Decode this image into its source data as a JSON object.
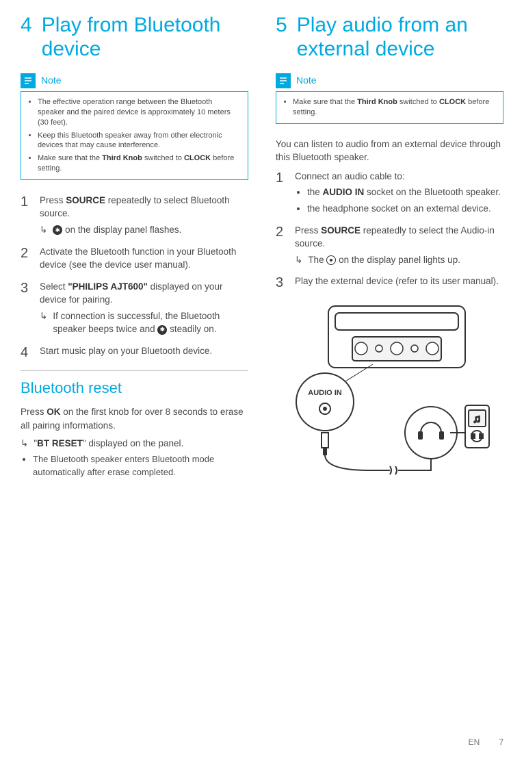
{
  "left": {
    "chapter_num": "4",
    "chapter_title": "Play from Bluetooth device",
    "note_label": "Note",
    "notes": [
      "The effective operation range between the Bluetooth speaker and the paired device is approximately 10 meters (30 feet).",
      "Keep this Bluetooth speaker away from other electronic devices that may cause interference.",
      "Make sure that the <strong>Third Knob</strong> switched to <strong>CLOCK</strong> before setting."
    ],
    "steps": [
      {
        "text": "Press <strong>SOURCE</strong> repeatedly to select Bluetooth source.",
        "result_html": "<span class='bt-icon-circle'>✱</span> on the display panel flashes."
      },
      {
        "text": "Activate the Bluetooth function in your Bluetooth device (see the device user manual)."
      },
      {
        "text": "Select <strong>\"PHILIPS AJT600\"</strong> displayed on your device for pairing.",
        "result_html": "If connection is successful, the Bluetooth speaker beeps twice and <span class='bt-icon-circle'>✱</span> steadily on."
      },
      {
        "text": "Start music play on your Bluetooth device."
      }
    ],
    "reset_title": "Bluetooth reset",
    "reset_intro": "Press <strong>OK</strong> on the first knob for over 8 seconds to erase all pairing informations.",
    "reset_result": "\"<strong>BT RESET</strong>\" displayed on the panel.",
    "reset_bullet": "The Bluetooth speaker enters Bluetooth mode automatically after erase completed."
  },
  "right": {
    "chapter_num": "5",
    "chapter_title": "Play audio from an external device",
    "note_label": "Note",
    "notes": [
      "Make sure that the <strong>Third Knob</strong> switched to <strong>CLOCK</strong> before setting."
    ],
    "intro": "You can listen to audio from an external device through this Bluetooth speaker.",
    "steps": [
      {
        "text": "Connect an audio cable to:",
        "bullets": [
          "the <strong>AUDIO IN</strong> socket on the Bluetooth speaker.",
          "the headphone socket on an external device."
        ]
      },
      {
        "text": "Press <strong>SOURCE</strong> repeatedly to select the Audio-in source.",
        "result_html": "The <span class='cd-icon-circle'></span> on the display panel lights up."
      },
      {
        "text": "Play the external device (refer to its user manual)."
      }
    ],
    "audio_in_label": "AUDIO IN"
  },
  "footer": {
    "lang": "EN",
    "page": "7"
  }
}
